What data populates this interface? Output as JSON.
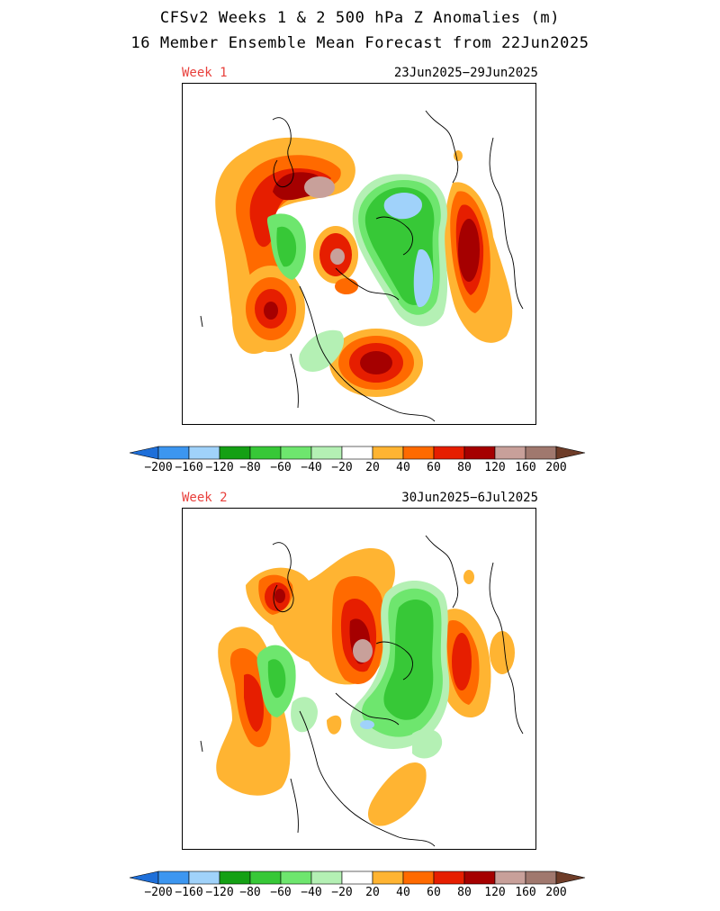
{
  "title": {
    "line1": "CFSv2 Weeks 1 & 2 500 hPa Z Anomalies (m)",
    "line2": "16 Member Ensemble Mean Forecast from 22Jun2025"
  },
  "panels": [
    {
      "label": "Week 1",
      "dates": "23Jun2025−29Jun2025"
    },
    {
      "label": "Week 2",
      "dates": "30Jun2025−6Jul2025"
    }
  ],
  "label_color": "#e8403c",
  "colorbar": {
    "levels": [
      "-200",
      "-160",
      "-120",
      "-80",
      "-60",
      "-40",
      "-20",
      "20",
      "40",
      "60",
      "80",
      "120",
      "160",
      "200"
    ],
    "colors": [
      "#1e6fd9",
      "#3c96f0",
      "#a0d2fa",
      "#14a014",
      "#37c837",
      "#6ee66e",
      "#b4f0b4",
      "#ffffff",
      "#ffb432",
      "#ff6a00",
      "#e61e00",
      "#a50000",
      "#c8a09a",
      "#a0786e",
      "#6e3c28"
    ]
  }
}
